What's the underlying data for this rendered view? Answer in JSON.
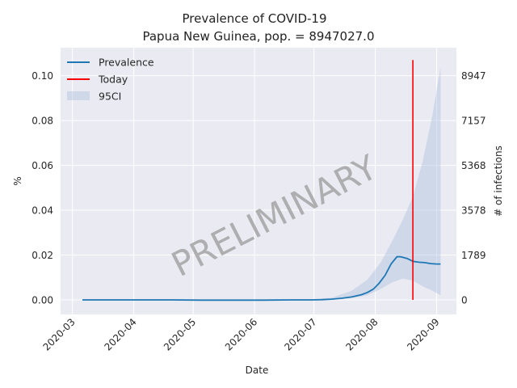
{
  "chart_data": {
    "type": "area",
    "title": "Prevalence of COVID-19",
    "subtitle": "Papua New Guinea, pop. = 8947027.0",
    "xlabel": "Date",
    "ylabel": "%",
    "ylabel_right": "# of infections",
    "watermark": "PRELIMINARY",
    "xlim": [
      "2020-02-24",
      "2020-09-11"
    ],
    "ylim": [
      -0.0065,
      0.1125
    ],
    "x_ticks": [
      "2020-03",
      "2020-04",
      "2020-05",
      "2020-06",
      "2020-07",
      "2020-08",
      "2020-09"
    ],
    "y_ticks": [
      "0.00",
      "0.02",
      "0.04",
      "0.06",
      "0.08",
      "0.10"
    ],
    "y_ticks_right": [
      "0",
      "1789",
      "3578",
      "5368",
      "7157",
      "8947"
    ],
    "legend": {
      "placement": "top-left",
      "entries": [
        "Prevalence",
        "Today"
      ],
      "band_label": "95CI"
    },
    "grid": true,
    "today": {
      "date": "2020-08-20",
      "y_range": [
        0,
        0.107
      ],
      "color": "#ff0000"
    },
    "colors": {
      "prevalence": "#1f77b4",
      "band": "#b0c4de",
      "background": "#eaeaf2"
    },
    "series": [
      {
        "name": "Prevalence",
        "x": [
          "2020-03-06",
          "2020-03-20",
          "2020-04-05",
          "2020-04-20",
          "2020-05-05",
          "2020-05-20",
          "2020-06-05",
          "2020-06-20",
          "2020-06-30",
          "2020-07-05",
          "2020-07-10",
          "2020-07-15",
          "2020-07-20",
          "2020-07-25",
          "2020-07-28",
          "2020-07-31",
          "2020-08-03",
          "2020-08-06",
          "2020-08-09",
          "2020-08-12",
          "2020-08-14",
          "2020-08-17",
          "2020-08-20",
          "2020-08-23",
          "2020-08-26",
          "2020-08-29",
          "2020-09-01",
          "2020-09-03"
        ],
        "y": [
          0.0,
          0.0,
          0.0,
          0.0,
          -0.0001,
          -0.0001,
          -0.0001,
          0.0,
          0.0,
          0.0001,
          0.0003,
          0.0007,
          0.0013,
          0.0023,
          0.0033,
          0.0048,
          0.0075,
          0.011,
          0.016,
          0.0193,
          0.0192,
          0.0185,
          0.0172,
          0.0168,
          0.0166,
          0.0162,
          0.016,
          0.016
        ]
      }
    ],
    "band": {
      "name": "95CI",
      "x": [
        "2020-07-01",
        "2020-07-10",
        "2020-07-20",
        "2020-07-28",
        "2020-08-04",
        "2020-08-10",
        "2020-08-15",
        "2020-08-20",
        "2020-08-25",
        "2020-08-30",
        "2020-09-03"
      ],
      "lower": [
        0.0,
        0.0002,
        0.0008,
        0.002,
        0.005,
        0.008,
        0.0095,
        0.0085,
        0.006,
        0.004,
        0.002
      ],
      "upper": [
        0.0002,
        0.001,
        0.004,
        0.009,
        0.017,
        0.027,
        0.036,
        0.046,
        0.062,
        0.083,
        0.104
      ]
    }
  }
}
